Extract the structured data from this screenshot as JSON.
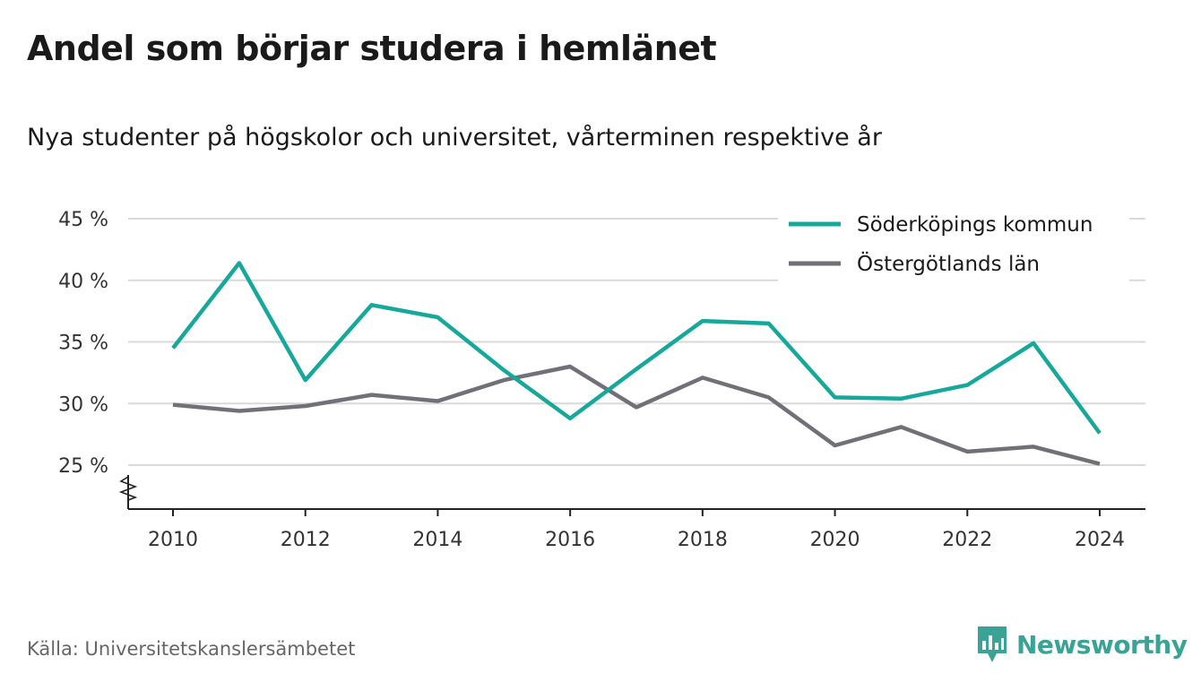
{
  "header": {
    "title": "Andel som börjar studera i hemlänet",
    "subtitle": "Nya studenter på högskolor och universitet, vårterminen respektive år"
  },
  "footer": {
    "source": "Källa: Universitetskanslersämbetet",
    "brand_name": "Newsworthy",
    "brand_color": "#3aa396"
  },
  "chart_data": {
    "type": "line",
    "title": "Andel som börjar studera i hemlänet",
    "subtitle": "Nya studenter på högskolor och universitet, vårterminen respektive år",
    "xlabel": "",
    "ylabel": "",
    "x": [
      2010,
      2011,
      2012,
      2013,
      2014,
      2015,
      2016,
      2017,
      2018,
      2019,
      2020,
      2021,
      2022,
      2023,
      2024
    ],
    "x_ticks": [
      2010,
      2012,
      2014,
      2016,
      2018,
      2020,
      2022,
      2024
    ],
    "y_ticks": [
      25,
      30,
      35,
      40,
      45
    ],
    "y_tick_labels": [
      "25 %",
      "30 %",
      "35 %",
      "40 %",
      "45 %"
    ],
    "ylim": [
      21.5,
      45
    ],
    "y_axis_break": true,
    "grid": "horizontal",
    "legend_position": "top-right",
    "series": [
      {
        "name": "Söderköpings kommun",
        "color": "#16a89a",
        "values": [
          34.5,
          41.4,
          31.9,
          38.0,
          37.0,
          32.7,
          28.8,
          32.8,
          36.7,
          36.5,
          30.5,
          30.4,
          31.5,
          34.9,
          27.6
        ]
      },
      {
        "name": "Östergötlands län",
        "color": "#717078",
        "values": [
          29.9,
          29.4,
          29.8,
          30.7,
          30.2,
          31.9,
          33.0,
          29.7,
          32.1,
          30.5,
          26.6,
          28.1,
          26.1,
          26.5,
          25.1
        ]
      }
    ]
  }
}
